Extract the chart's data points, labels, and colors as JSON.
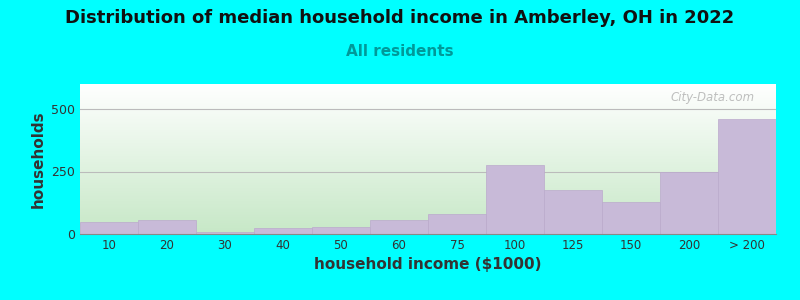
{
  "title": "Distribution of median household income in Amberley, OH in 2022",
  "subtitle": "All residents",
  "xlabel": "household income ($1000)",
  "ylabel": "households",
  "background_outer": "#00FFFF",
  "bar_color": "#C8BAD8",
  "bar_edge_color": "#BBAACC",
  "categories": [
    "10",
    "20",
    "30",
    "40",
    "50",
    "60",
    "75",
    "100",
    "125",
    "150",
    "200",
    "> 200"
  ],
  "values": [
    50,
    55,
    10,
    25,
    30,
    55,
    80,
    275,
    175,
    130,
    250,
    460
  ],
  "ylim": [
    0,
    600
  ],
  "yticks": [
    0,
    250,
    500
  ],
  "title_fontsize": 13,
  "subtitle_fontsize": 11,
  "axis_label_fontsize": 11,
  "watermark_text": "City-Data.com",
  "plot_bg_top_color": "#FFFFFF",
  "plot_bg_bottom_color": "#C8E8C8"
}
